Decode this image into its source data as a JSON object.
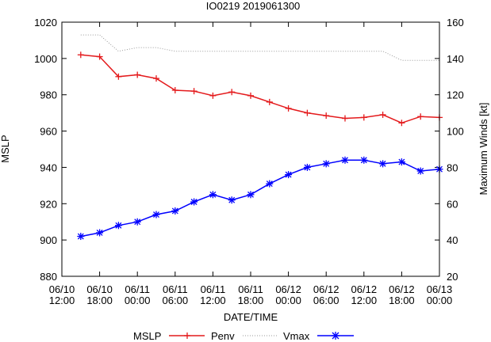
{
  "chart_data": {
    "type": "line",
    "title": "IO0219 2019061300",
    "xlabel": "DATE/TIME",
    "ylabel_left": "MSLP",
    "ylabel_right": "Maximum Winds [kt]",
    "xlim": [
      0,
      60
    ],
    "ylim_left": [
      880,
      1020
    ],
    "ylim_right": [
      20,
      160
    ],
    "x_ticks": [
      {
        "x": 0,
        "line1": "06/10",
        "line2": "12:00"
      },
      {
        "x": 6,
        "line1": "06/10",
        "line2": "18:00"
      },
      {
        "x": 12,
        "line1": "06/11",
        "line2": "00:00"
      },
      {
        "x": 18,
        "line1": "06/11",
        "line2": "06:00"
      },
      {
        "x": 24,
        "line1": "06/11",
        "line2": "12:00"
      },
      {
        "x": 30,
        "line1": "06/11",
        "line2": "18:00"
      },
      {
        "x": 36,
        "line1": "06/12",
        "line2": "00:00"
      },
      {
        "x": 42,
        "line1": "06/12",
        "line2": "06:00"
      },
      {
        "x": 48,
        "line1": "06/12",
        "line2": "12:00"
      },
      {
        "x": 54,
        "line1": "06/12",
        "line2": "18:00"
      },
      {
        "x": 60,
        "line1": "06/13",
        "line2": "00:00"
      }
    ],
    "y_ticks_left": [
      880,
      900,
      920,
      940,
      960,
      980,
      1000,
      1020
    ],
    "y_ticks_right": [
      20,
      40,
      60,
      80,
      100,
      120,
      140,
      160
    ],
    "legend": {
      "position": "bottom",
      "title": "MSLP"
    },
    "series": [
      {
        "name": "Penv",
        "axis": "left",
        "color": "#e41a1c",
        "marker": "plus",
        "x": [
          3,
          6,
          9,
          12,
          15,
          18,
          21,
          24,
          27,
          30,
          33,
          36,
          39,
          42,
          45,
          48,
          51,
          54,
          57,
          60
        ],
        "values": [
          1002,
          1001,
          990,
          991,
          989,
          982.5,
          982,
          979.5,
          981.5,
          979.5,
          976,
          972.5,
          970,
          968.5,
          967,
          967.5,
          969,
          964.5,
          968,
          967.5
        ]
      },
      {
        "name": "Vmax",
        "axis": "right",
        "color": "#999999",
        "style": "dotted",
        "x": [
          3,
          6,
          9,
          12,
          15,
          18,
          21,
          24,
          27,
          30,
          33,
          36,
          39,
          42,
          45,
          48,
          51,
          54,
          57,
          60
        ],
        "values": [
          153,
          153,
          144,
          146,
          146,
          144,
          144,
          144,
          144,
          144,
          144,
          144,
          144,
          144,
          144,
          144,
          144,
          139,
          139,
          139
        ]
      },
      {
        "name": "",
        "axis": "right",
        "color": "#0000ff",
        "marker": "star",
        "x": [
          3,
          6,
          9,
          12,
          15,
          18,
          21,
          24,
          27,
          30,
          33,
          36,
          39,
          42,
          45,
          48,
          51,
          54,
          57,
          60
        ],
        "values": [
          42,
          44,
          48,
          50,
          54,
          56,
          61,
          65,
          62,
          65,
          71,
          76,
          80,
          82,
          84,
          84,
          82,
          83,
          78,
          79
        ]
      }
    ]
  }
}
